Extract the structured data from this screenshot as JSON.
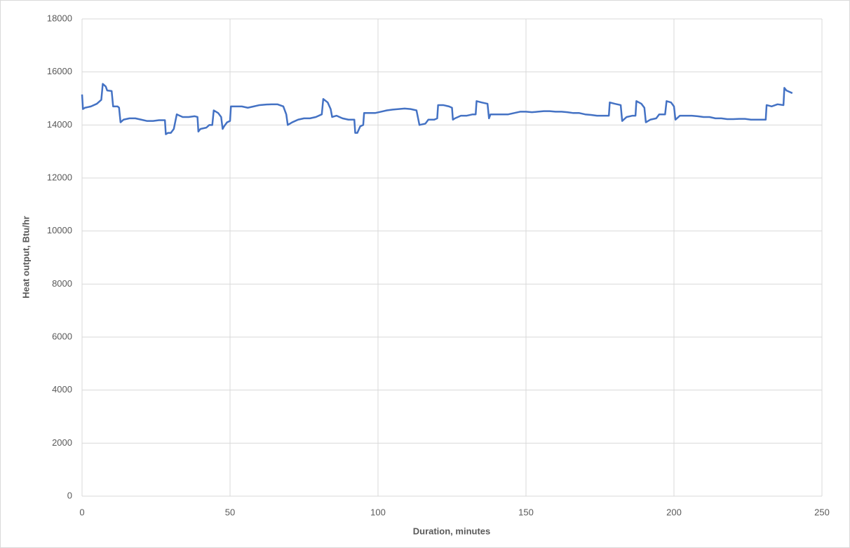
{
  "chart_data": {
    "type": "line",
    "x_label": "Duration, minutes",
    "y_label": "Heat output, Btu/hr",
    "xlim": [
      0,
      250
    ],
    "xticks": [
      0,
      50,
      100,
      150,
      200,
      250
    ],
    "ylim": [
      0,
      18000
    ],
    "yticks": [
      0,
      2000,
      4000,
      6000,
      8000,
      10000,
      12000,
      14000,
      16000,
      18000
    ],
    "grid": true,
    "series": [
      {
        "color": "#4472c4",
        "x": [
          0,
          0.3,
          1,
          3,
          5,
          6.5,
          7,
          8,
          8.5,
          10,
          10.5,
          12,
          12.5,
          13,
          14,
          16,
          18,
          20,
          22,
          24,
          26,
          28,
          28.3,
          29,
          30,
          31,
          32,
          33,
          34,
          36,
          38,
          39,
          39.3,
          40,
          42,
          43,
          44,
          44.5,
          46,
          47,
          47.5,
          48,
          49,
          50,
          50.3,
          52,
          54,
          56,
          58,
          60,
          62,
          64,
          66,
          68,
          69,
          69.5,
          71,
          73,
          75,
          77,
          79,
          81,
          81.5,
          83,
          84,
          84.5,
          86,
          88,
          90,
          92,
          92.3,
          93,
          94,
          95,
          95.3,
          97,
          99,
          101,
          103,
          105,
          107,
          109,
          111,
          113,
          114,
          116,
          117,
          119,
          120,
          120.3,
          122,
          124,
          125,
          125.3,
          126,
          128,
          130,
          132,
          133,
          133.3,
          135,
          137,
          137.5,
          138,
          140,
          142,
          144,
          146,
          148,
          150,
          152,
          154,
          156,
          158,
          160,
          162,
          164,
          166,
          168,
          170,
          172,
          174,
          176,
          178,
          178.3,
          180,
          182,
          182.5,
          184,
          186,
          187,
          187.3,
          189,
          190,
          190.5,
          192,
          194,
          195,
          197,
          197.5,
          199,
          200,
          200.5,
          202,
          204,
          206,
          208,
          210,
          212,
          214,
          216,
          218,
          220,
          222,
          224,
          226,
          228,
          230,
          231,
          231.3,
          233,
          235,
          237,
          237.3,
          238,
          240
        ],
        "values": [
          15150,
          14600,
          14650,
          14700,
          14800,
          14950,
          15550,
          15450,
          15300,
          15280,
          14700,
          14700,
          14650,
          14100,
          14200,
          14250,
          14250,
          14200,
          14150,
          14150,
          14180,
          14180,
          13650,
          13700,
          13700,
          13850,
          14400,
          14350,
          14300,
          14300,
          14330,
          14300,
          13750,
          13850,
          13900,
          14000,
          14000,
          14550,
          14450,
          14300,
          13850,
          13950,
          14100,
          14150,
          14700,
          14700,
          14700,
          14650,
          14700,
          14750,
          14770,
          14780,
          14780,
          14700,
          14400,
          14000,
          14100,
          14200,
          14250,
          14250,
          14300,
          14400,
          14980,
          14850,
          14600,
          14300,
          14350,
          14250,
          14200,
          14200,
          13700,
          13700,
          13950,
          14000,
          14450,
          14450,
          14450,
          14500,
          14550,
          14580,
          14600,
          14620,
          14600,
          14550,
          14000,
          14050,
          14200,
          14200,
          14250,
          14750,
          14750,
          14700,
          14650,
          14200,
          14250,
          14350,
          14350,
          14400,
          14400,
          14900,
          14850,
          14800,
          14250,
          14400,
          14400,
          14400,
          14400,
          14450,
          14500,
          14500,
          14480,
          14500,
          14520,
          14520,
          14500,
          14500,
          14480,
          14450,
          14450,
          14400,
          14380,
          14350,
          14350,
          14350,
          14850,
          14800,
          14750,
          14150,
          14300,
          14350,
          14350,
          14900,
          14800,
          14650,
          14100,
          14200,
          14250,
          14400,
          14400,
          14900,
          14850,
          14700,
          14200,
          14350,
          14350,
          14350,
          14330,
          14300,
          14300,
          14250,
          14250,
          14220,
          14220,
          14230,
          14230,
          14200,
          14200,
          14200,
          14200,
          14750,
          14700,
          14780,
          14750,
          15400,
          15300,
          15200
        ]
      }
    ]
  }
}
